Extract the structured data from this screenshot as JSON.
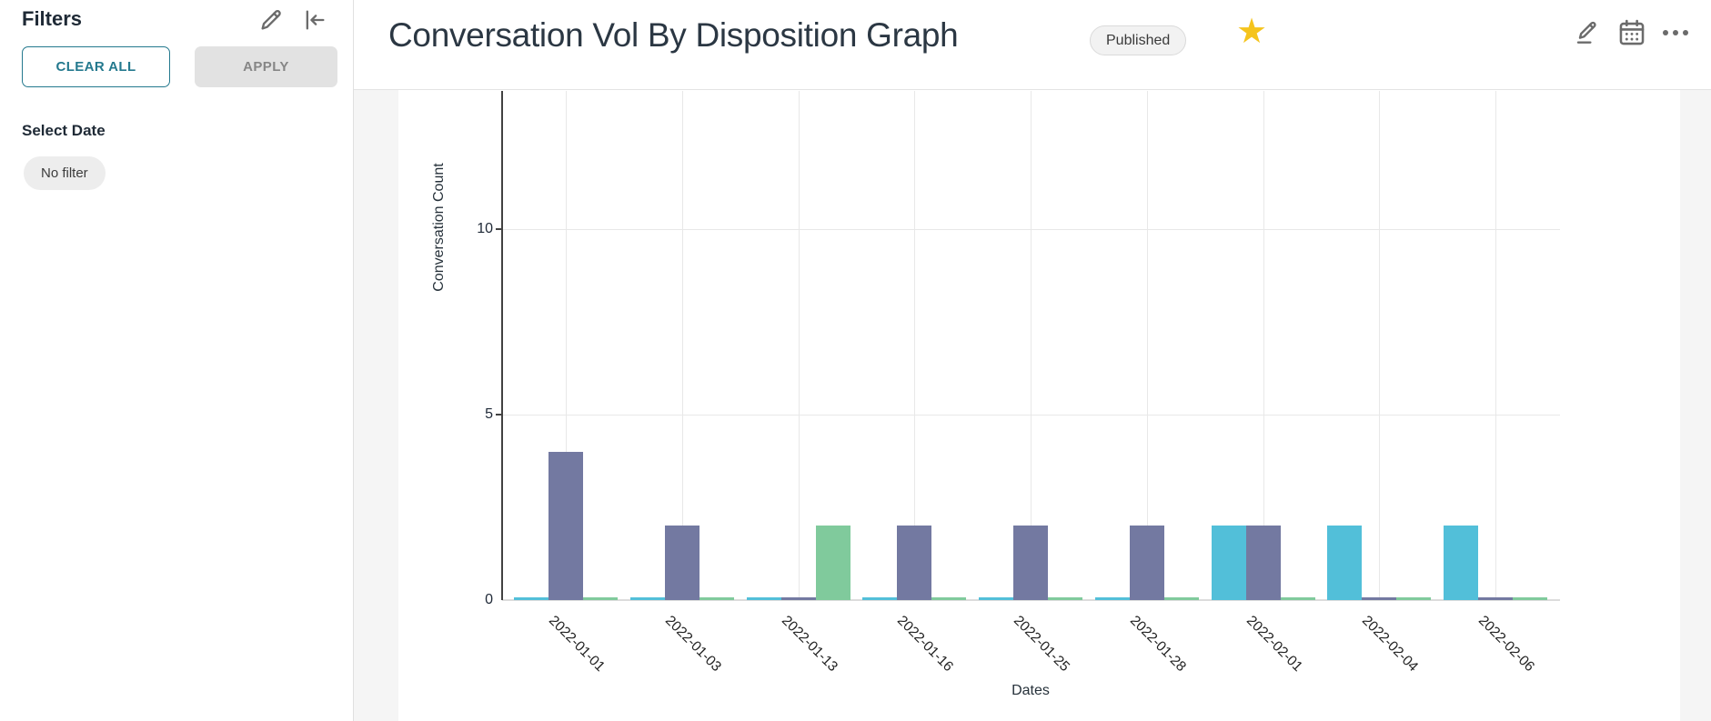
{
  "sidebar": {
    "title": "Filters",
    "clear_all_label": "CLEAR ALL",
    "apply_label": "APPLY",
    "select_date_label": "Select Date",
    "no_filter_label": "No filter"
  },
  "header": {
    "title": "Conversation Vol By Disposition Graph",
    "status_badge": "Published",
    "favorite_glyph": "★",
    "starred": true
  },
  "icons": {
    "sidebar_edit": "pencil-icon",
    "sidebar_collapse": "collapse-left-icon",
    "header_edit": "pencil-underline-icon",
    "header_calendar": "calendar-icon",
    "header_more": "ellipsis-icon",
    "favorite": "star-icon"
  },
  "colors": {
    "accent_teal": "#24798e",
    "star_gold": "#f5c41d",
    "bar_cyan": "#52bfd9",
    "bar_purple": "#7379a1",
    "bar_green": "#80ca9c",
    "grid": "#e8e8e8",
    "axis": "#424242",
    "panel_background": "#f5f5f5"
  },
  "chart_data": {
    "type": "bar",
    "title": "",
    "xlabel": "Dates",
    "ylabel": "Conversation Count",
    "categories": [
      "2022-01-01",
      "2022-01-03",
      "2022-01-13",
      "2022-01-16",
      "2022-01-25",
      "2022-01-28",
      "2022-02-01",
      "2022-02-04",
      "2022-02-06"
    ],
    "series": [
      {
        "name": "cyan",
        "color": "#52bfd9",
        "values": [
          0,
          0,
          0,
          0,
          0,
          0,
          2,
          2,
          2
        ]
      },
      {
        "name": "purple",
        "color": "#7379a1",
        "values": [
          4,
          2,
          0,
          2,
          2,
          2,
          2,
          0,
          0
        ]
      },
      {
        "name": "green",
        "color": "#80ca9c",
        "values": [
          0,
          0,
          2,
          0,
          0,
          0,
          0,
          0,
          0
        ]
      }
    ],
    "yticks": [
      0,
      5,
      10
    ],
    "ylim": [
      0,
      13.7
    ],
    "grid": true,
    "legend": false
  }
}
